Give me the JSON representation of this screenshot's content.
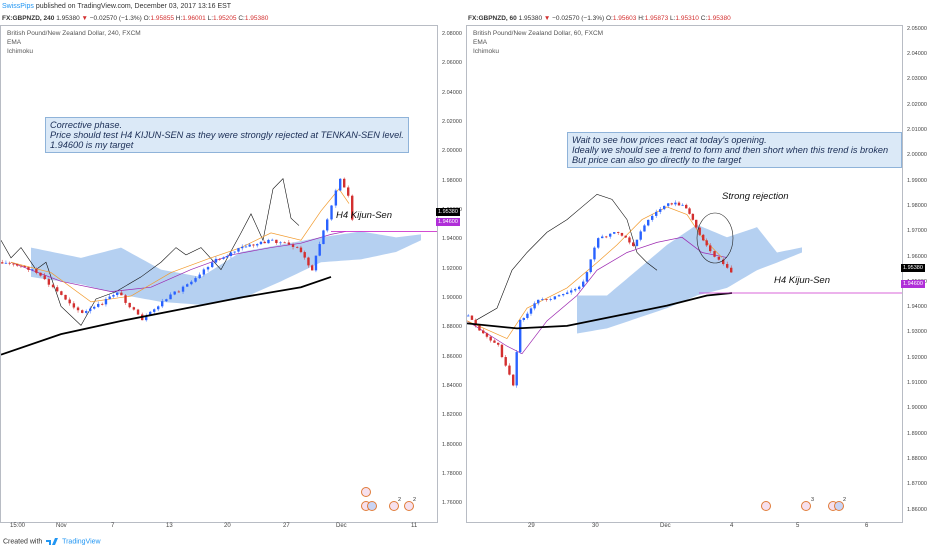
{
  "topbar": {
    "user": "SwissPips",
    "text": " published on TradingView.com, December 03, 2017 13:16 EST"
  },
  "footer": {
    "created_with": "Created with",
    "brand": "TradingView"
  },
  "colors": {
    "bull": "#2962ff",
    "bear": "#d32f2f",
    "cloud": "#a8c8ef",
    "tenkan": "#f29b2e",
    "kijun": "#9c27b0",
    "chikou": "#111111",
    "ema": "#000000",
    "kijun_line": "#cc33cc"
  },
  "left": {
    "symbol": "FX:GBPNZD, 240",
    "price": "1.95380",
    "change": "−0.02570 (−1.3%)",
    "o_label": "O:",
    "o": "1.95855",
    "h_label": "H:",
    "h": "1.96001",
    "l_label": "L:",
    "l": "1.95205",
    "c_label": "C:",
    "c": "1.95380",
    "legend_title": "British Pound/New Zealand Dollar, 240, FXCM",
    "legend_ema": "EMA",
    "legend_ichi": "Ichimoku",
    "note": "Corrective phase.\nPrice should test H4 KIJUN-SEN as they were strongly rejected at TENKAN-SEN level.\n1.94600 is my target",
    "kijun_label": "H4 Kijun-Sen",
    "price_box": "1.95380",
    "kijun_box": "1.94600",
    "event_counts": [
      "2",
      "2"
    ]
  },
  "right": {
    "symbol": "FX:GBPNZD, 60",
    "price": "1.95380",
    "change": "−0.02570 (−1.3%)",
    "o_label": "O:",
    "o": "1.95603",
    "h_label": "H:",
    "h": "1.95873",
    "l_label": "L:",
    "l": "1.95310",
    "c_label": "C:",
    "c": "1.95380",
    "legend_title": "British Pound/New Zealand Dollar, 60, FXCM",
    "legend_ema": "EMA",
    "legend_ichi": "Ichimoku",
    "note": "Wait to see how prices react at today's opening.\nIdeally we should see a trend to form and then short when this trend is broken\nBut price can also go directly to the target",
    "rejection_label": "Strong rejection",
    "kijun_label": "H4 Kijun-Sen",
    "price_box": "1.95380",
    "kijun_box": "1.94600",
    "event_counts": [
      "3",
      "2"
    ]
  },
  "chart_data": [
    {
      "type": "candlestick",
      "title": "British Pound/New Zealand Dollar, 240, FXCM",
      "x_ticks": [
        "15:00",
        "Nov",
        "7",
        "13",
        "20",
        "27",
        "Dec",
        "11"
      ],
      "y_ticks": [
        "2.08000",
        "2.06000",
        "2.04000",
        "2.02000",
        "2.00000",
        "1.98000",
        "1.96000",
        "1.94000",
        "1.92000",
        "1.90000",
        "1.88000",
        "1.86000",
        "1.84000",
        "1.82000",
        "1.80000",
        "1.78000",
        "1.76000"
      ],
      "ylim": [
        1.748,
        2.086
      ],
      "series": [
        {
          "name": "EMA",
          "points": [
            [
              0,
              1.862
            ],
            [
              60,
              1.876
            ],
            [
              120,
              1.885
            ],
            [
              180,
              1.893
            ],
            [
              240,
              1.901
            ],
            [
              300,
              1.908
            ],
            [
              330,
              1.915
            ]
          ]
        },
        {
          "name": "Ichimoku Kijun",
          "points": [
            [
              10,
              1.925
            ],
            [
              60,
              1.912
            ],
            [
              110,
              1.905
            ],
            [
              150,
              1.908
            ],
            [
              190,
              1.92
            ],
            [
              230,
              1.93
            ],
            [
              270,
              1.935
            ],
            [
              300,
              1.938
            ],
            [
              330,
              1.944
            ],
            [
              345,
              1.946
            ]
          ]
        }
      ],
      "levels": [
        {
          "name": "H4 Kijun-Sen",
          "value": 1.946
        }
      ],
      "last_price": 1.9538
    },
    {
      "type": "candlestick",
      "title": "British Pound/New Zealand Dollar, 60, FXCM",
      "x_ticks": [
        "29",
        "30",
        "Dec",
        "4",
        "5",
        "6"
      ],
      "y_ticks": [
        "2.05000",
        "2.04000",
        "2.03000",
        "2.02000",
        "2.01000",
        "2.00000",
        "1.99000",
        "1.98000",
        "1.97000",
        "1.96000",
        "1.95000",
        "1.94000",
        "1.93000",
        "1.92000",
        "1.91000",
        "1.90000",
        "1.89000",
        "1.88000",
        "1.87000",
        "1.86000"
      ],
      "ylim": [
        1.8555,
        2.0515
      ],
      "series": [
        {
          "name": "EMA",
          "points": [
            [
              0,
              1.934
            ],
            [
              50,
              1.932
            ],
            [
              100,
              1.933
            ],
            [
              150,
              1.937
            ],
            [
              200,
              1.941
            ],
            [
              240,
              1.945
            ],
            [
              265,
              1.946
            ]
          ]
        }
      ],
      "levels": [
        {
          "name": "H4 Kijun-Sen",
          "value": 1.946
        }
      ],
      "last_price": 1.9538
    }
  ]
}
